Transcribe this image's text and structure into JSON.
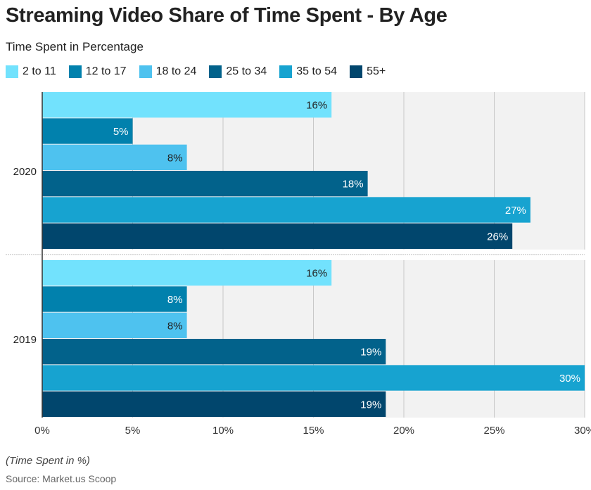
{
  "title": "Streaming Video Share of Time Spent - By Age",
  "subtitle": "Time Spent in Percentage",
  "note": "(Time Spent in %)",
  "source": "Source: Market.us Scoop",
  "chart_data": {
    "type": "bar",
    "orientation": "horizontal",
    "categories": [
      "2020",
      "2019"
    ],
    "series": [
      {
        "name": "2 to 11",
        "color": "#72e2fd",
        "values": [
          16,
          16
        ]
      },
      {
        "name": "12 to 17",
        "color": "#0181ad",
        "values": [
          5,
          8
        ]
      },
      {
        "name": "18 to 24",
        "color": "#4ec2ef",
        "values": [
          8,
          8
        ]
      },
      {
        "name": "25 to 34",
        "color": "#02628b",
        "values": [
          18,
          19
        ]
      },
      {
        "name": "35 to 54",
        "color": "#17a3d0",
        "values": [
          27,
          30
        ]
      },
      {
        "name": "55+",
        "color": "#01466d",
        "values": [
          26,
          19
        ]
      }
    ],
    "xlim": [
      0,
      30
    ],
    "xticks": [
      "0%",
      "5%",
      "10%",
      "15%",
      "20%",
      "25%",
      "30%"
    ],
    "value_suffix": "%",
    "grid": true,
    "legend": "top-left"
  }
}
